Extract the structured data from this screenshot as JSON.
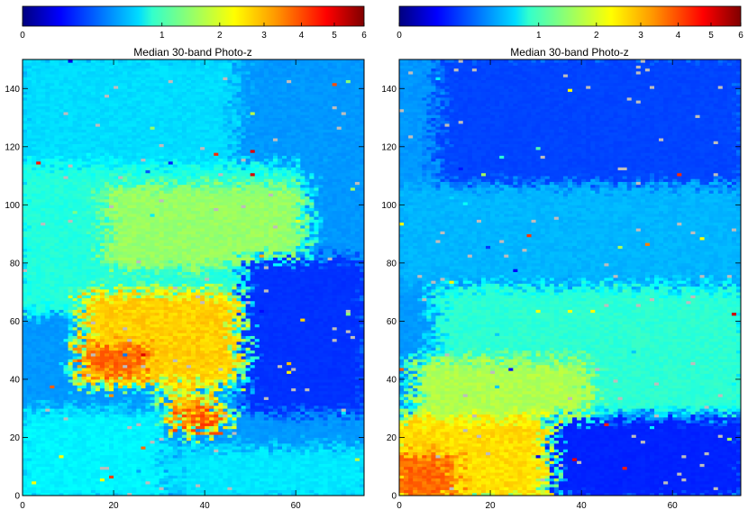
{
  "chart_data": [
    {
      "type": "heatmap",
      "title": "Median 30-band Photo-z",
      "colorbar": {
        "range": [
          0,
          6
        ],
        "scale": "sqrt",
        "ticks": [
          0,
          1,
          2,
          3,
          4,
          5,
          6
        ],
        "tick_labels": [
          "0",
          "1",
          "2",
          "3",
          "4",
          "5",
          "6"
        ],
        "colormap": "jet",
        "placement": "top"
      },
      "xlim": [
        0,
        75
      ],
      "ylim": [
        0,
        150
      ],
      "xticks": [
        0,
        20,
        40,
        60
      ],
      "xtick_labels": [
        "0",
        "20",
        "40",
        "60"
      ],
      "yticks": [
        0,
        20,
        40,
        60,
        80,
        100,
        120,
        140
      ],
      "ytick_labels": [
        "0",
        "20",
        "40",
        "60",
        "80",
        "100",
        "120",
        "140"
      ],
      "grid": false,
      "missing_color": "#bdbdbd",
      "regions": [
        {
          "label": "background",
          "value": 0.45
        },
        {
          "label": "upper-left band",
          "x": [
            0,
            45
          ],
          "y": [
            112,
            150
          ],
          "value": 0.7
        },
        {
          "label": "light band",
          "x": [
            0,
            60
          ],
          "y": [
            65,
            112
          ],
          "value": 1.0
        },
        {
          "label": "upper-central lobe",
          "x": [
            20,
            60
          ],
          "y": [
            80,
            105
          ],
          "value": 1.65
        },
        {
          "label": "orange lobe",
          "x": [
            15,
            50
          ],
          "y": [
            40,
            68
          ],
          "value": 2.7
        },
        {
          "label": "red fringe",
          "x": [
            15,
            25
          ],
          "y": [
            43,
            50
          ],
          "value": 3.6
        },
        {
          "label": "lower-left light",
          "x": [
            0,
            30
          ],
          "y": [
            0,
            28
          ],
          "value": 0.8
        },
        {
          "label": "lower-right light",
          "x": [
            35,
            75
          ],
          "y": [
            0,
            15
          ],
          "value": 0.75
        },
        {
          "label": "right deep blue",
          "x": [
            50,
            75
          ],
          "y": [
            30,
            80
          ],
          "value": 0.18
        },
        {
          "label": "small orange spot",
          "x": [
            34,
            40
          ],
          "y": [
            28,
            35
          ],
          "value": 2.8
        },
        {
          "label": "small red spot",
          "x": [
            36,
            42
          ],
          "y": [
            24,
            28
          ],
          "value": 3.9
        }
      ]
    },
    {
      "type": "heatmap",
      "title": "Median 30-band Photo-z",
      "colorbar": {
        "range": [
          0,
          6
        ],
        "scale": "sqrt",
        "ticks": [
          0,
          1,
          2,
          3,
          4,
          5,
          6
        ],
        "tick_labels": [
          "0",
          "1",
          "2",
          "3",
          "4",
          "5",
          "6"
        ],
        "colormap": "jet",
        "placement": "top"
      },
      "xlim": [
        0,
        75
      ],
      "ylim": [
        0,
        150
      ],
      "xticks": [
        0,
        20,
        40,
        60
      ],
      "xtick_labels": [
        "0",
        "20",
        "40",
        "60"
      ],
      "yticks": [
        0,
        20,
        40,
        60,
        80,
        100,
        120,
        140
      ],
      "ytick_labels": [
        "0",
        "20",
        "40",
        "60",
        "80",
        "100",
        "120",
        "140"
      ],
      "grid": false,
      "missing_color": "#bdbdbd",
      "regions": [
        {
          "label": "background",
          "value": 0.45
        },
        {
          "label": "upper blue",
          "x": [
            10,
            75
          ],
          "y": [
            105,
            150
          ],
          "value": 0.22
        },
        {
          "label": "mid light band",
          "x": [
            0,
            75
          ],
          "y": [
            75,
            105
          ],
          "value": 0.55
        },
        {
          "label": "central lobe",
          "x": [
            10,
            75
          ],
          "y": [
            30,
            70
          ],
          "value": 1.05
        },
        {
          "label": "lower yellow lobe",
          "x": [
            5,
            40
          ],
          "y": [
            20,
            45
          ],
          "value": 1.8
        },
        {
          "label": "orange lower-left",
          "x": [
            0,
            35
          ],
          "y": [
            0,
            25
          ],
          "value": 2.6
        },
        {
          "label": "red bottom-left",
          "x": [
            0,
            10
          ],
          "y": [
            0,
            12
          ],
          "value": 3.6
        },
        {
          "label": "lower-right blue",
          "x": [
            35,
            75
          ],
          "y": [
            0,
            25
          ],
          "value": 0.15
        }
      ]
    }
  ]
}
